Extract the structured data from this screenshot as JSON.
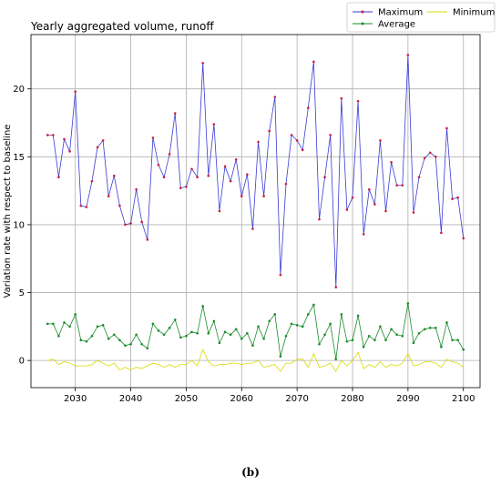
{
  "figure": {
    "caption": "(b)"
  },
  "chart_data": {
    "type": "line",
    "title": "Yearly aggregated volume, runoff",
    "xlabel": "",
    "ylabel": "Variation rate with respect to baseline",
    "xlim": [
      2022,
      2103
    ],
    "ylim": [
      -2,
      24
    ],
    "xticks": [
      2030,
      2040,
      2050,
      2060,
      2070,
      2080,
      2090,
      2100
    ],
    "yticks": [
      0,
      5,
      10,
      15,
      20
    ],
    "grid": true,
    "legend_position": "top-right",
    "x": [
      2025,
      2026,
      2027,
      2028,
      2029,
      2030,
      2031,
      2032,
      2033,
      2034,
      2035,
      2036,
      2037,
      2038,
      2039,
      2040,
      2041,
      2042,
      2043,
      2044,
      2045,
      2046,
      2047,
      2048,
      2049,
      2050,
      2051,
      2052,
      2053,
      2054,
      2055,
      2056,
      2057,
      2058,
      2059,
      2060,
      2061,
      2062,
      2063,
      2064,
      2065,
      2066,
      2067,
      2068,
      2069,
      2070,
      2071,
      2072,
      2073,
      2074,
      2075,
      2076,
      2077,
      2078,
      2079,
      2080,
      2081,
      2082,
      2083,
      2084,
      2085,
      2086,
      2087,
      2088,
      2089,
      2090,
      2091,
      2092,
      2093,
      2094,
      2095,
      2096,
      2097,
      2098,
      2099,
      2100
    ],
    "series": [
      {
        "name": "Maximum",
        "color": "#3b3bd6",
        "marker": "#cc1e3c",
        "values": [
          16.6,
          16.6,
          13.5,
          16.3,
          15.4,
          19.8,
          11.4,
          11.3,
          13.2,
          15.7,
          16.2,
          12.1,
          13.6,
          11.4,
          10.0,
          10.1,
          12.6,
          10.2,
          8.9,
          16.4,
          14.4,
          13.5,
          15.2,
          18.2,
          12.7,
          12.8,
          14.1,
          13.5,
          21.9,
          13.6,
          17.4,
          11.0,
          14.3,
          13.2,
          14.8,
          12.1,
          13.7,
          9.7,
          16.1,
          12.1,
          16.9,
          19.4,
          6.3,
          13.0,
          16.6,
          16.2,
          15.5,
          18.6,
          22.0,
          10.4,
          13.5,
          16.6,
          5.4,
          19.3,
          11.1,
          12.0,
          19.1,
          9.3,
          12.6,
          11.5,
          16.2,
          11.0,
          14.6,
          12.9,
          12.9,
          22.5,
          10.9,
          13.5,
          14.9,
          15.3,
          15.0,
          9.4,
          17.1,
          11.9,
          12.0,
          9.0
        ]
      },
      {
        "name": "Average",
        "color": "#1a8c2a",
        "marker": "#1a8c2a",
        "values": [
          2.7,
          2.7,
          1.8,
          2.8,
          2.5,
          3.4,
          1.5,
          1.4,
          1.8,
          2.5,
          2.6,
          1.6,
          1.9,
          1.5,
          1.1,
          1.2,
          1.9,
          1.2,
          0.9,
          2.7,
          2.2,
          1.9,
          2.4,
          3.0,
          1.7,
          1.8,
          2.1,
          2.0,
          4.0,
          2.0,
          2.9,
          1.3,
          2.1,
          1.9,
          2.3,
          1.6,
          2.0,
          1.1,
          2.5,
          1.6,
          2.9,
          3.4,
          0.3,
          1.8,
          2.7,
          2.6,
          2.5,
          3.4,
          4.1,
          1.2,
          1.9,
          2.7,
          0.1,
          3.4,
          1.4,
          1.5,
          3.3,
          1.0,
          1.8,
          1.5,
          2.5,
          1.5,
          2.3,
          1.9,
          1.8,
          4.2,
          1.3,
          2.0,
          2.3,
          2.4,
          2.4,
          1.0,
          2.8,
          1.5,
          1.5,
          0.8
        ]
      },
      {
        "name": "Minimum",
        "color": "#d9d900",
        "values": [
          0.0,
          0.1,
          -0.3,
          -0.1,
          -0.2,
          -0.4,
          -0.4,
          -0.4,
          -0.3,
          0.0,
          -0.2,
          -0.4,
          -0.2,
          -0.7,
          -0.5,
          -0.7,
          -0.5,
          -0.6,
          -0.4,
          -0.2,
          -0.3,
          -0.5,
          -0.3,
          -0.5,
          -0.3,
          -0.3,
          0.0,
          -0.4,
          0.8,
          -0.1,
          -0.4,
          -0.3,
          -0.3,
          -0.2,
          -0.2,
          -0.3,
          -0.2,
          -0.2,
          0.0,
          -0.5,
          -0.4,
          -0.3,
          -0.8,
          -0.2,
          -0.2,
          0.1,
          0.1,
          -0.5,
          0.5,
          -0.5,
          -0.4,
          -0.2,
          -0.8,
          0.0,
          -0.4,
          0.0,
          0.6,
          -0.6,
          -0.3,
          -0.5,
          -0.1,
          -0.5,
          -0.3,
          -0.4,
          -0.2,
          0.5,
          -0.4,
          -0.3,
          -0.1,
          -0.1,
          -0.2,
          -0.5,
          0.1,
          -0.1,
          -0.2,
          -0.5
        ]
      }
    ],
    "legend_order": [
      "Maximum",
      "Average",
      "Minimum"
    ]
  }
}
